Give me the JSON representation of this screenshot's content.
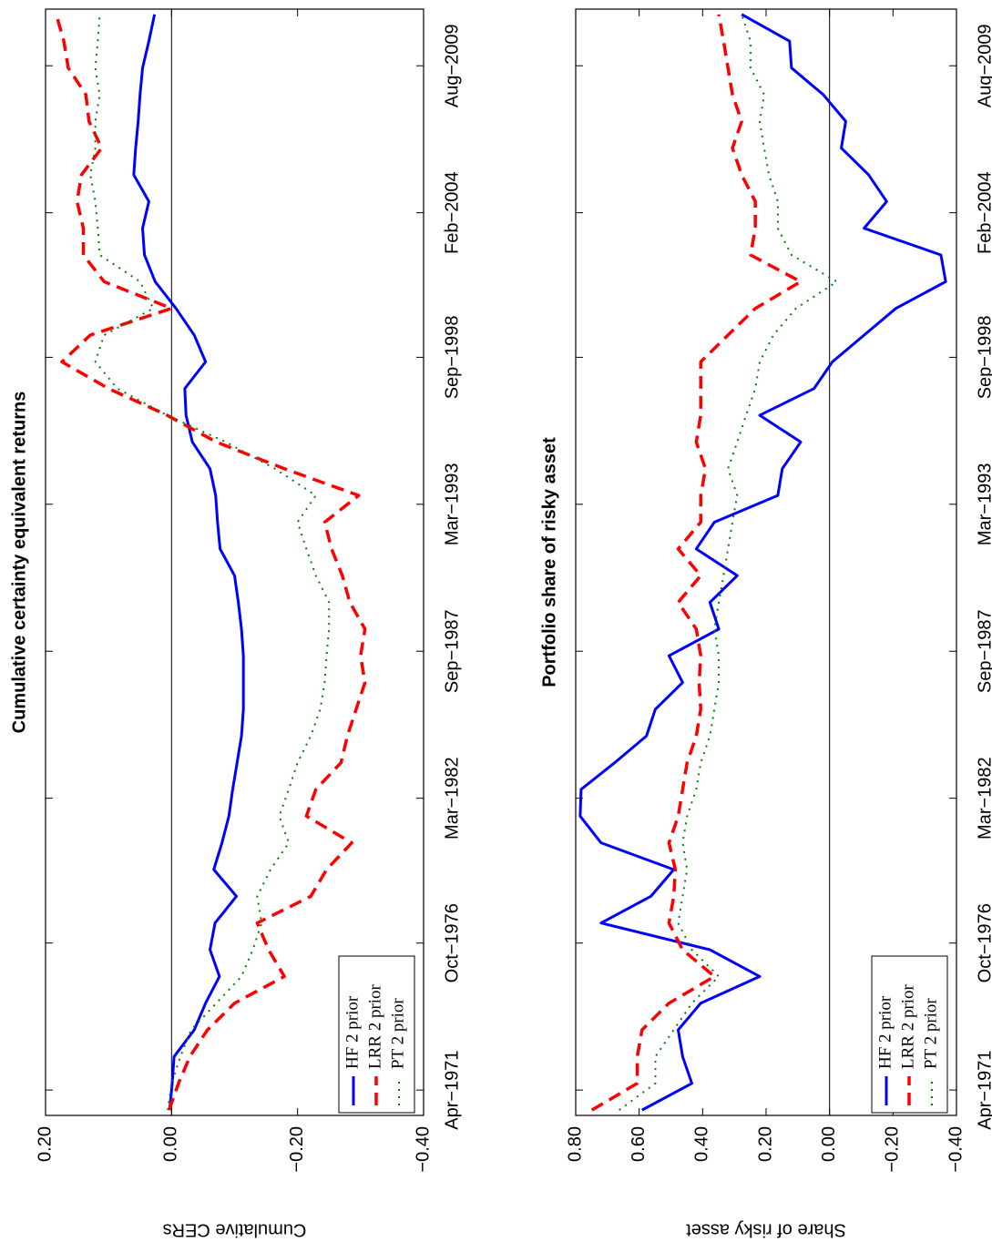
{
  "chart_data": [
    {
      "type": "line",
      "title": "Cumulative certainty equivalent returns",
      "ylabel": "Cumulative CERs",
      "x": [
        1970.5,
        1971.5,
        1972.5,
        1973.5,
        1974.5,
        1975.5,
        1976.5,
        1977.5,
        1978.5,
        1979.5,
        1980.5,
        1981.5,
        1982.5,
        1983.5,
        1984.5,
        1985.5,
        1986.5,
        1987.5,
        1988.5,
        1989.5,
        1990.5,
        1991.5,
        1992.5,
        1993.5,
        1994.5,
        1995.5,
        1996.5,
        1997.5,
        1998.5,
        1999.5,
        2000.5,
        2001.5,
        2002.5,
        2003.5,
        2004.5,
        2005.5,
        2006.5,
        2007.5,
        2008.5,
        2009.5,
        2010.5,
        2011.5
      ],
      "xlim": [
        1970.3,
        2011.7
      ],
      "ylim": [
        -0.4,
        0.2
      ],
      "xticks": [
        {
          "value": 1971.25,
          "label": "Apr−1971"
        },
        {
          "value": 1976.75,
          "label": "Oct−1976"
        },
        {
          "value": 1982.17,
          "label": "Mar−1982"
        },
        {
          "value": 1987.67,
          "label": "Sep−1987"
        },
        {
          "value": 1993.17,
          "label": "Mar−1993"
        },
        {
          "value": 1998.67,
          "label": "Sep−1998"
        },
        {
          "value": 2004.08,
          "label": "Feb−2004"
        },
        {
          "value": 2009.58,
          "label": "Aug−2009"
        }
      ],
      "yticks": [
        {
          "value": -0.4,
          "label": "−0.40"
        },
        {
          "value": -0.2,
          "label": "−0.20"
        },
        {
          "value": 0,
          "label": "0.00"
        },
        {
          "value": 0.2,
          "label": "0.20"
        }
      ],
      "legend": "lower left",
      "series": [
        {
          "name": "HF 2 prior",
          "color": "#0000ff",
          "dash": "solid",
          "values": [
            0.003,
            -0.001,
            -0.004,
            -0.036,
            -0.054,
            -0.076,
            -0.061,
            -0.069,
            -0.103,
            -0.067,
            -0.08,
            -0.091,
            -0.097,
            -0.104,
            -0.111,
            -0.114,
            -0.114,
            -0.114,
            -0.111,
            -0.106,
            -0.1,
            -0.077,
            -0.073,
            -0.07,
            -0.061,
            -0.033,
            -0.023,
            -0.021,
            -0.054,
            -0.036,
            -0.007,
            0.026,
            0.043,
            0.046,
            0.036,
            0.06,
            0.057,
            0.053,
            0.05,
            0.046,
            0.036,
            0.027
          ]
        },
        {
          "name": "LRR 2 prior",
          "color": "#ff0000",
          "dash": "dashed",
          "values": [
            0.004,
            -0.011,
            -0.029,
            -0.057,
            -0.1,
            -0.179,
            -0.154,
            -0.136,
            -0.221,
            -0.246,
            -0.286,
            -0.214,
            -0.229,
            -0.269,
            -0.279,
            -0.293,
            -0.307,
            -0.3,
            -0.307,
            -0.283,
            -0.271,
            -0.254,
            -0.243,
            -0.297,
            -0.179,
            -0.071,
            0.007,
            0.1,
            0.174,
            0.129,
            0,
            0.107,
            0.14,
            0.14,
            0.15,
            0.143,
            0.111,
            0.131,
            0.136,
            0.164,
            0.171,
            0.183
          ]
        },
        {
          "name": "PT 2 prior",
          "color": "#008000",
          "dash": "dotted",
          "values": [
            0.006,
            0,
            -0.014,
            -0.031,
            -0.071,
            -0.111,
            -0.129,
            -0.143,
            -0.136,
            -0.157,
            -0.186,
            -0.171,
            -0.186,
            -0.2,
            -0.221,
            -0.236,
            -0.243,
            -0.246,
            -0.25,
            -0.25,
            -0.229,
            -0.214,
            -0.2,
            -0.229,
            -0.164,
            -0.086,
            0.007,
            0.086,
            0.121,
            0.107,
            0.029,
            0.05,
            0.114,
            0.117,
            0.121,
            0.129,
            0.121,
            0.121,
            0.114,
            0.121,
            0.117,
            0.114
          ]
        }
      ]
    },
    {
      "type": "line",
      "title": "Portfolio share of risky asset",
      "ylabel": "Share of risky asset",
      "x": [
        1970.5,
        1971.5,
        1972.5,
        1973.5,
        1974.5,
        1975.5,
        1976.5,
        1977.5,
        1978.5,
        1979.5,
        1980.5,
        1981.5,
        1982.5,
        1983.5,
        1984.5,
        1985.5,
        1986.5,
        1987.5,
        1988.5,
        1989.5,
        1990.5,
        1991.5,
        1992.5,
        1993.5,
        1994.5,
        1995.5,
        1996.5,
        1997.5,
        1998.5,
        1999.5,
        2000.5,
        2001.5,
        2002.5,
        2003.5,
        2004.5,
        2005.5,
        2006.5,
        2007.5,
        2008.5,
        2009.5,
        2010.5,
        2011.5
      ],
      "xlim": [
        1970.3,
        2011.7
      ],
      "ylim": [
        -0.4,
        0.8
      ],
      "xticks": [
        {
          "value": 1971.25,
          "label": "Apr−1971"
        },
        {
          "value": 1976.75,
          "label": "Oct−1976"
        },
        {
          "value": 1982.17,
          "label": "Mar−1982"
        },
        {
          "value": 1987.67,
          "label": "Sep−1987"
        },
        {
          "value": 1993.17,
          "label": "Mar−1993"
        },
        {
          "value": 1998.67,
          "label": "Sep−1998"
        },
        {
          "value": 2004.08,
          "label": "Feb−2004"
        },
        {
          "value": 2009.58,
          "label": "Aug−2009"
        }
      ],
      "yticks": [
        {
          "value": -0.4,
          "label": "−0.40"
        },
        {
          "value": -0.2,
          "label": "−0.20"
        },
        {
          "value": 0,
          "label": "0.00"
        },
        {
          "value": 0.2,
          "label": "0.20"
        },
        {
          "value": 0.4,
          "label": "0.40"
        },
        {
          "value": 0.6,
          "label": "0.60"
        },
        {
          "value": 0.8,
          "label": "0.80"
        }
      ],
      "legend": "lower left",
      "series": [
        {
          "name": "HF 2 prior",
          "color": "#0000ff",
          "dash": "solid",
          "values": [
            0.591,
            0.434,
            0.463,
            0.477,
            0.406,
            0.22,
            0.377,
            0.72,
            0.563,
            0.491,
            0.72,
            0.786,
            0.783,
            0.677,
            0.577,
            0.549,
            0.463,
            0.506,
            0.349,
            0.377,
            0.291,
            0.42,
            0.363,
            0.163,
            0.149,
            0.091,
            0.22,
            0.049,
            -0.009,
            -0.109,
            -0.209,
            -0.366,
            -0.351,
            -0.109,
            -0.18,
            -0.123,
            -0.037,
            -0.051,
            0.02,
            0.12,
            0.126,
            0.277
          ]
        },
        {
          "name": "LRR 2 prior",
          "color": "#ff0000",
          "dash": "dashed",
          "values": [
            0.749,
            0.606,
            0.606,
            0.591,
            0.506,
            0.363,
            0.463,
            0.506,
            0.491,
            0.486,
            0.506,
            0.477,
            0.463,
            0.449,
            0.42,
            0.406,
            0.411,
            0.406,
            0.42,
            0.477,
            0.406,
            0.477,
            0.406,
            0.406,
            0.391,
            0.42,
            0.406,
            0.406,
            0.406,
            0.32,
            0.234,
            0.091,
            0.249,
            0.234,
            0.234,
            0.277,
            0.306,
            0.277,
            0.306,
            0.32,
            0.334,
            0.349
          ]
        },
        {
          "name": "PT 2 prior",
          "color": "#008000",
          "dash": "dotted",
          "values": [
            0.663,
            0.549,
            0.549,
            0.491,
            0.434,
            0.349,
            0.434,
            0.477,
            0.463,
            0.449,
            0.463,
            0.449,
            0.42,
            0.406,
            0.377,
            0.363,
            0.349,
            0.349,
            0.363,
            0.349,
            0.334,
            0.32,
            0.306,
            0.291,
            0.32,
            0.291,
            0.263,
            0.234,
            0.22,
            0.177,
            0.106,
            -0.023,
            0.12,
            0.163,
            0.163,
            0.191,
            0.206,
            0.22,
            0.206,
            0.249,
            0.249,
            0.277
          ]
        }
      ]
    }
  ]
}
